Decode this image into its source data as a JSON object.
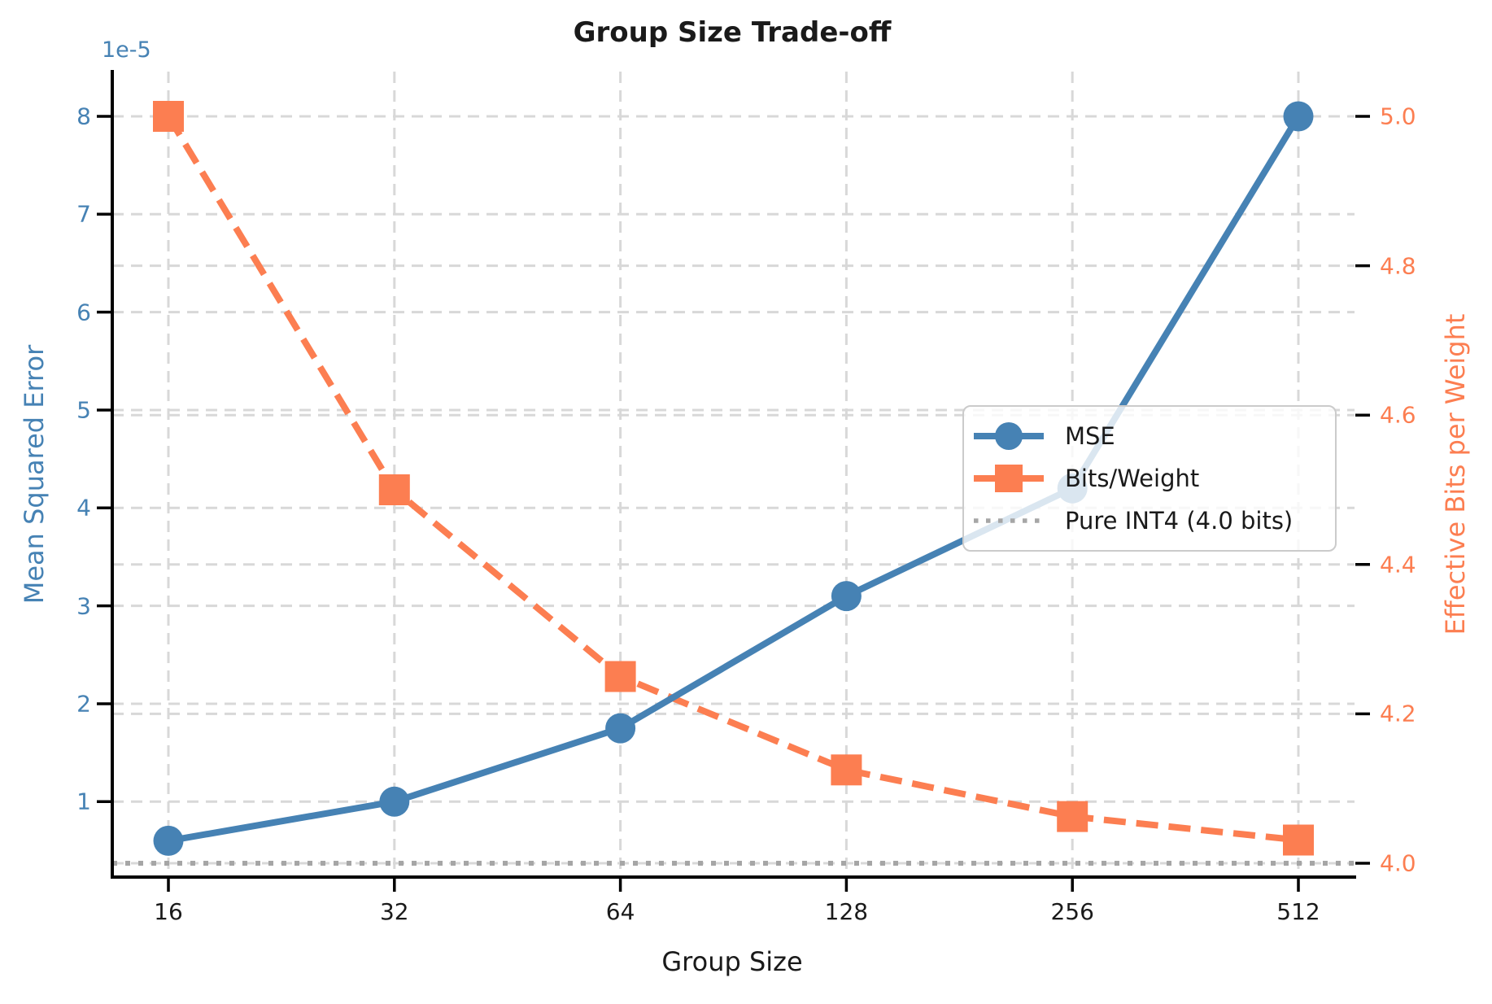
{
  "title": "Group Size Trade-off",
  "axes": {
    "x": {
      "label": "Group Size",
      "tick_labels": [
        "16",
        "32",
        "64",
        "128",
        "256",
        "512"
      ]
    },
    "y_left": {
      "label": "Mean Squared Error",
      "offset_text": "1e-5",
      "tick_labels": [
        "1",
        "2",
        "3",
        "4",
        "5",
        "6",
        "7",
        "8"
      ],
      "color": "#4682B4"
    },
    "y_right": {
      "label": "Effective Bits per Weight",
      "tick_labels": [
        "4.0",
        "4.2",
        "4.4",
        "4.6",
        "4.8",
        "5.0"
      ],
      "color": "#FC7E51"
    }
  },
  "chart_data": {
    "type": "line",
    "title": "Group Size Trade-off",
    "xlabel": "Group Size",
    "x": [
      16,
      32,
      64,
      128,
      256,
      512
    ],
    "x_scale": "log2",
    "grid": true,
    "legend_position": "center-right",
    "y_left_unit": "1e-5",
    "y_left_range": [
      0.23,
      8.46
    ],
    "y_right_range": [
      3.98,
      5.06
    ],
    "series": [
      {
        "name": "MSE",
        "axis": "left",
        "color": "#4682B4",
        "marker": "circle",
        "line_style": "solid",
        "values": [
          0.6,
          1.0,
          1.75,
          3.1,
          4.2,
          8.0
        ]
      },
      {
        "name": "Bits/Weight",
        "axis": "right",
        "color": "#FC7E51",
        "marker": "square",
        "line_style": "dashed",
        "values": [
          5.0,
          4.5,
          4.25,
          4.125,
          4.0625,
          4.031
        ]
      }
    ],
    "reference_line": {
      "name": "Pure INT4 (4.0 bits)",
      "axis": "right",
      "value": 4.0,
      "color": "#A6A6A6",
      "line_style": "dotted"
    }
  },
  "legend": {
    "items": [
      {
        "label": "MSE"
      },
      {
        "label": "Bits/Weight"
      },
      {
        "label": "Pure INT4 (4.0 bits)"
      }
    ]
  }
}
